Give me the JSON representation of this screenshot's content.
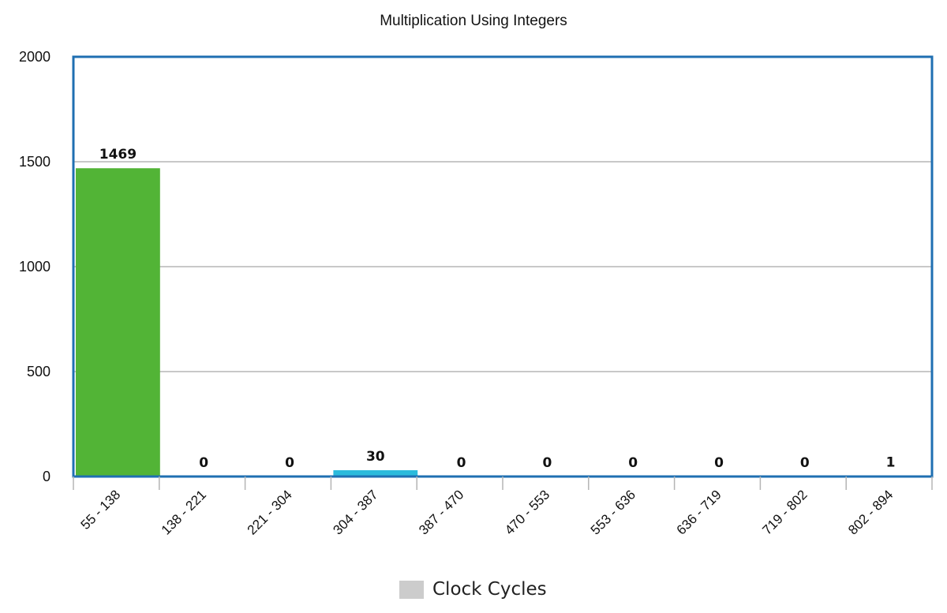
{
  "chart_data": {
    "type": "bar",
    "title": "Multiplication Using Integers",
    "xlabel": "",
    "ylabel": "",
    "categories": [
      "55 - 138",
      "138 - 221",
      "221 - 304",
      "304 - 387",
      "387 - 470",
      "470 - 553",
      "553 - 636",
      "636 - 719",
      "719 - 802",
      "802 - 894"
    ],
    "series": [
      {
        "name": "Clock Cycles",
        "values": [
          1469,
          0,
          0,
          30,
          0,
          0,
          0,
          0,
          0,
          1
        ]
      }
    ],
    "value_labels": [
      "1469",
      "0",
      "0",
      "30",
      "0",
      "0",
      "0",
      "0",
      "0",
      "1"
    ],
    "bar_colors": [
      "#52b436",
      "#52b436",
      "#52b436",
      "#2bbbdc",
      "#2bbbdc",
      "#2bbbdc",
      "#2bbbdc",
      "#2bbbdc",
      "#2bbbdc",
      "#2bbbdc"
    ],
    "ylim": [
      0,
      2000
    ],
    "yticks": [
      0,
      500,
      1000,
      1500,
      2000
    ],
    "ytick_labels": [
      "0",
      "500",
      "1000",
      "1500",
      "2000"
    ],
    "grid": true,
    "legend_placement": "bottom-center",
    "frame_color": "#1f6fb2",
    "grid_color": "#b5b5b5",
    "legend_swatch_color": "#cccccc"
  }
}
